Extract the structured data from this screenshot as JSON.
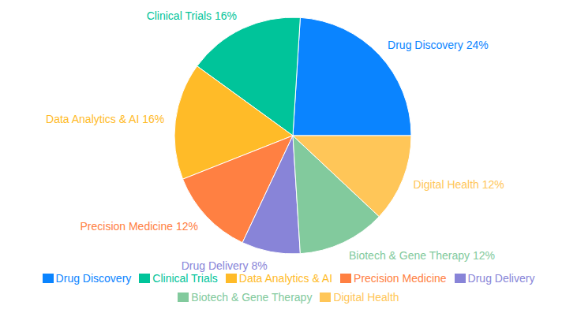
{
  "chart_data": {
    "type": "pie",
    "categories": [
      "Drug Discovery",
      "Clinical Trials",
      "Data Analytics & AI",
      "Precision Medicine",
      "Drug Delivery",
      "Biotech & Gene Therapy",
      "Digital Health"
    ],
    "values": [
      24,
      16,
      16,
      12,
      8,
      12,
      12
    ],
    "value_labels": [
      "24%",
      "16%",
      "16%",
      "12%",
      "8%",
      "12%",
      "12%"
    ],
    "colors": [
      "#0a84ff",
      "#00c49a",
      "#ffbb28",
      "#ff8042",
      "#8884d8",
      "#82ca9d",
      "#ffc658"
    ],
    "data_labels": true,
    "legend": "bottom"
  }
}
